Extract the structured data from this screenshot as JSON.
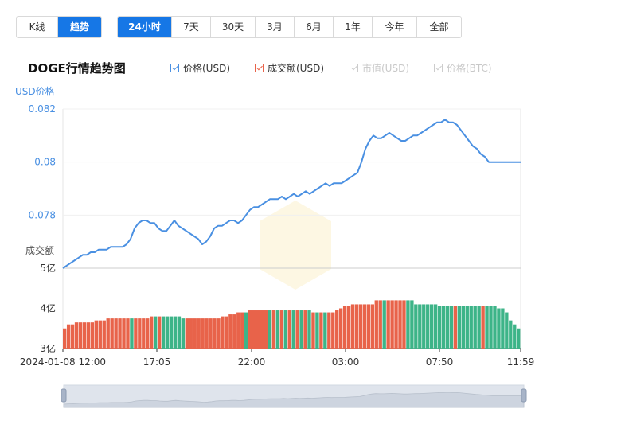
{
  "tabs_a": [
    {
      "label": "K线",
      "active": false
    },
    {
      "label": "趋势",
      "active": true
    }
  ],
  "tabs_b": [
    {
      "label": "24小时",
      "active": true
    },
    {
      "label": "7天",
      "active": false
    },
    {
      "label": "30天",
      "active": false
    },
    {
      "label": "3月",
      "active": false
    },
    {
      "label": "6月",
      "active": false
    },
    {
      "label": "1年",
      "active": false
    },
    {
      "label": "今年",
      "active": false
    },
    {
      "label": "全部",
      "active": false
    }
  ],
  "title": "DOGE行情趋势图",
  "legend": [
    {
      "label": "价格(USD)",
      "checked": true,
      "color": "#4a90e2",
      "enabled": true
    },
    {
      "label": "成交额(USD)",
      "checked": true,
      "color": "#e8634a",
      "enabled": true
    },
    {
      "label": "市值(USD)",
      "checked": true,
      "color": "#cccccc",
      "enabled": false
    },
    {
      "label": "价格(BTC)",
      "checked": true,
      "color": "#cccccc",
      "enabled": false
    }
  ],
  "chart_data": {
    "type": "line",
    "price_axis": {
      "label": "USD价格",
      "ticks": [
        "0.082",
        "0.08",
        "0.078"
      ],
      "ylim": [
        0.076,
        0.082
      ]
    },
    "volume_axis": {
      "label": "成交额",
      "ticks": [
        "5亿",
        "4亿",
        "3亿"
      ],
      "ylim": [
        3,
        5
      ]
    },
    "x_ticks": [
      "2024-01-08 12:00",
      "17:05",
      "22:00",
      "03:00",
      "07:50",
      "11:59"
    ],
    "price_series": {
      "name": "价格(USD)",
      "color": "#4a90e2",
      "values": [
        0.076,
        0.0761,
        0.0762,
        0.0763,
        0.0764,
        0.0765,
        0.0765,
        0.0766,
        0.0766,
        0.0767,
        0.0767,
        0.0767,
        0.0768,
        0.0768,
        0.0768,
        0.0768,
        0.0769,
        0.0771,
        0.0775,
        0.0777,
        0.0778,
        0.0778,
        0.0777,
        0.0777,
        0.0775,
        0.0774,
        0.0774,
        0.0776,
        0.0778,
        0.0776,
        0.0775,
        0.0774,
        0.0773,
        0.0772,
        0.0771,
        0.0769,
        0.077,
        0.0772,
        0.0775,
        0.0776,
        0.0776,
        0.0777,
        0.0778,
        0.0778,
        0.0777,
        0.0778,
        0.078,
        0.0782,
        0.0783,
        0.0783,
        0.0784,
        0.0785,
        0.0786,
        0.0786,
        0.0786,
        0.0787,
        0.0786,
        0.0787,
        0.0788,
        0.0787,
        0.0788,
        0.0789,
        0.0788,
        0.0789,
        0.079,
        0.0791,
        0.0792,
        0.0791,
        0.0792,
        0.0792,
        0.0792,
        0.0793,
        0.0794,
        0.0795,
        0.0796,
        0.08,
        0.0805,
        0.0808,
        0.081,
        0.0809,
        0.0809,
        0.081,
        0.0811,
        0.081,
        0.0809,
        0.0808,
        0.0808,
        0.0809,
        0.081,
        0.081,
        0.0811,
        0.0812,
        0.0813,
        0.0814,
        0.0815,
        0.0815,
        0.0816,
        0.0815,
        0.0815,
        0.0814,
        0.0812,
        0.081,
        0.0808,
        0.0806,
        0.0805,
        0.0803,
        0.0802,
        0.08,
        0.08,
        0.08,
        0.08,
        0.08,
        0.08,
        0.08,
        0.08,
        0.08
      ]
    },
    "volume_series": {
      "name": "成交额(USD)",
      "colors": {
        "up": "#e8634a",
        "down": "#3db488"
      },
      "values": [
        3.5,
        3.6,
        3.6,
        3.65,
        3.65,
        3.65,
        3.65,
        3.65,
        3.7,
        3.7,
        3.7,
        3.75,
        3.75,
        3.75,
        3.75,
        3.75,
        3.75,
        3.75,
        3.75,
        3.75,
        3.75,
        3.75,
        3.8,
        3.8,
        3.8,
        3.8,
        3.8,
        3.8,
        3.8,
        3.8,
        3.75,
        3.75,
        3.75,
        3.75,
        3.75,
        3.75,
        3.75,
        3.75,
        3.75,
        3.75,
        3.8,
        3.8,
        3.85,
        3.85,
        3.9,
        3.9,
        3.9,
        3.95,
        3.95,
        3.95,
        3.95,
        3.95,
        3.95,
        3.95,
        3.95,
        3.95,
        3.95,
        3.95,
        3.95,
        3.95,
        3.95,
        3.95,
        3.95,
        3.9,
        3.9,
        3.9,
        3.9,
        3.9,
        3.9,
        3.95,
        4.0,
        4.05,
        4.05,
        4.1,
        4.1,
        4.1,
        4.1,
        4.1,
        4.1,
        4.2,
        4.2,
        4.2,
        4.2,
        4.2,
        4.2,
        4.2,
        4.2,
        4.2,
        4.2,
        4.1,
        4.1,
        4.1,
        4.1,
        4.1,
        4.1,
        4.05,
        4.05,
        4.05,
        4.05,
        4.05,
        4.05,
        4.05,
        4.05,
        4.05,
        4.05,
        4.05,
        4.05,
        4.05,
        4.05,
        4.05,
        4.0,
        4.0,
        3.9,
        3.7,
        3.6,
        3.5
      ],
      "direction": [
        1,
        1,
        1,
        1,
        1,
        1,
        1,
        1,
        1,
        1,
        1,
        1,
        1,
        1,
        1,
        1,
        1,
        0,
        1,
        1,
        1,
        1,
        1,
        0,
        1,
        0,
        0,
        0,
        0,
        0,
        0,
        1,
        1,
        1,
        1,
        1,
        1,
        1,
        1,
        1,
        1,
        1,
        1,
        1,
        1,
        1,
        0,
        1,
        1,
        1,
        1,
        1,
        0,
        1,
        0,
        1,
        0,
        1,
        0,
        1,
        0,
        1,
        0,
        1,
        0,
        1,
        0,
        1,
        1,
        1,
        1,
        1,
        1,
        1,
        1,
        1,
        1,
        1,
        1,
        1,
        1,
        0,
        1,
        1,
        1,
        1,
        1,
        0,
        0,
        0,
        0,
        0,
        0,
        0,
        0,
        0,
        0,
        0,
        0,
        1,
        0,
        0,
        0,
        0,
        0,
        0,
        1,
        0,
        0,
        0,
        0,
        0,
        0,
        0,
        0,
        0
      ]
    },
    "grid": true
  }
}
